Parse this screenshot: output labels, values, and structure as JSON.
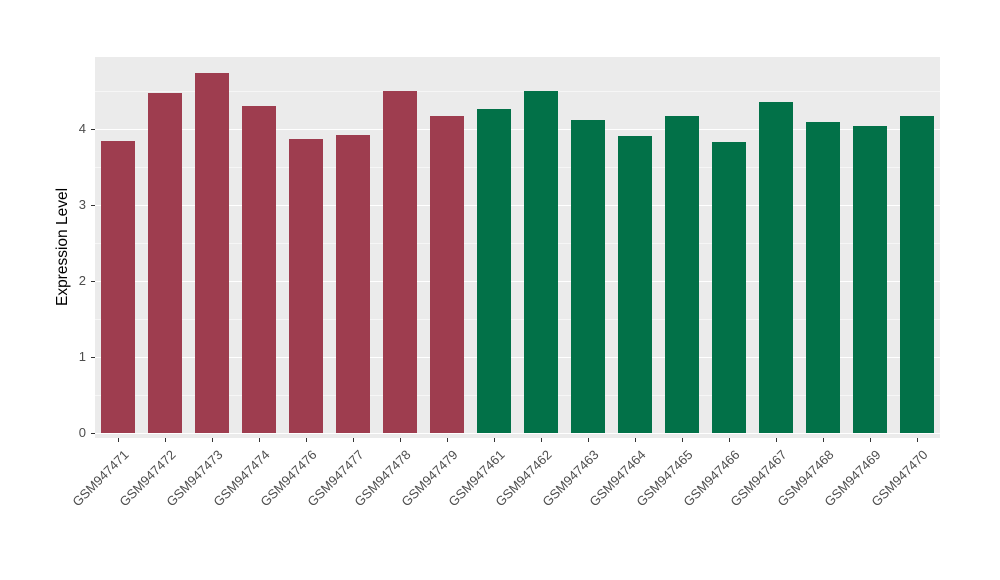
{
  "figure": {
    "background": "#FFFFFF"
  },
  "chart_data": {
    "type": "bar",
    "title": "",
    "xlabel": "",
    "ylabel": "Expression Level",
    "categories": [
      "GSM947471",
      "GSM947472",
      "GSM947473",
      "GSM947474",
      "GSM947476",
      "GSM947477",
      "GSM947478",
      "GSM947479",
      "GSM947461",
      "GSM947462",
      "GSM947463",
      "GSM947464",
      "GSM947465",
      "GSM947466",
      "GSM947467",
      "GSM947468",
      "GSM947469",
      "GSM947470"
    ],
    "values": [
      3.84,
      4.48,
      4.74,
      4.31,
      3.87,
      3.92,
      4.5,
      4.17,
      4.27,
      4.5,
      4.12,
      3.91,
      4.17,
      3.83,
      4.36,
      4.1,
      4.04,
      4.17
    ],
    "bar_colors": [
      "#9E3D4F",
      "#9E3D4F",
      "#9E3D4F",
      "#9E3D4F",
      "#9E3D4F",
      "#9E3D4F",
      "#9E3D4F",
      "#9E3D4F",
      "#027148",
      "#027148",
      "#027148",
      "#027148",
      "#027148",
      "#027148",
      "#027148",
      "#027148",
      "#027148",
      "#027148"
    ],
    "ylim": [
      0,
      4.95
    ],
    "yticks": [
      0,
      1,
      2,
      3,
      4
    ],
    "minor_gridlines": [
      0.5,
      1.5,
      2.5,
      3.5,
      4.5
    ],
    "panel_background": "#EBEBEB",
    "major_grid_color": "#FFFFFF",
    "minor_grid_color": "#FFFFFF",
    "tick_color": "#333333",
    "label_color": "#4D4D4D",
    "legend": "none",
    "grid": true
  }
}
